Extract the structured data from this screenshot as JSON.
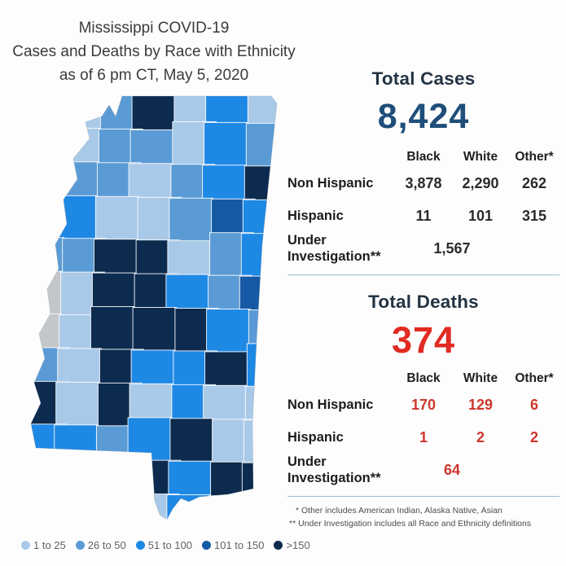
{
  "title": {
    "line1": "Mississippi COVID-19",
    "line2": "Cases and Deaths by Race with Ethnicity",
    "line3": "as of 6 pm CT, May 5, 2020"
  },
  "cases": {
    "heading": "Total Cases",
    "total": "8,424",
    "columns": [
      "Black",
      "White",
      "Other*"
    ],
    "rows": [
      {
        "label": "Non Hispanic",
        "values": [
          "3,878",
          "2,290",
          "262"
        ]
      },
      {
        "label": "Hispanic",
        "values": [
          "11",
          "101",
          "315"
        ]
      },
      {
        "label_line1": "Under",
        "label_line2": "Investigation**",
        "value": "1,567"
      }
    ]
  },
  "deaths": {
    "heading": "Total Deaths",
    "total": "374",
    "columns": [
      "Black",
      "White",
      "Other*"
    ],
    "rows": [
      {
        "label": "Non Hispanic",
        "values": [
          "170",
          "129",
          "6"
        ]
      },
      {
        "label": "Hispanic",
        "values": [
          "1",
          "2",
          "2"
        ]
      },
      {
        "label_line1": "Under",
        "label_line2": "Investigation**",
        "value": "64"
      }
    ]
  },
  "footnotes": [
    "* Other includes American Indian, Alaska Native, Asian",
    "** Under Investigation includes all Race and Ethnicity definitions"
  ],
  "legend": {
    "items": [
      {
        "label": "1 to 25",
        "color": "#a9c9e9"
      },
      {
        "label": "26 to 50",
        "color": "#5b9bd5"
      },
      {
        "label": "51 to 100",
        "color": "#1e88e5"
      },
      {
        "label": "101 to 150",
        "color": "#1659a4"
      },
      {
        "label": ">150",
        "color": "#0d2b4e"
      }
    ]
  },
  "map": {
    "no_data_color": "#c4c7ca",
    "grid": [
      [
        0,
        0,
        1,
        4,
        0,
        2,
        0
      ],
      [
        0,
        0,
        1,
        1,
        0,
        2,
        1
      ],
      [
        1,
        1,
        1,
        0,
        1,
        2,
        4
      ],
      [
        2,
        2,
        0,
        0,
        1,
        3,
        2
      ],
      [
        1,
        1,
        4,
        4,
        0,
        1,
        2
      ],
      [
        5,
        0,
        4,
        4,
        2,
        1,
        3
      ],
      [
        5,
        0,
        4,
        4,
        4,
        2,
        1
      ],
      [
        1,
        0,
        4,
        2,
        2,
        4,
        2
      ],
      [
        4,
        0,
        4,
        0,
        2,
        0,
        0
      ],
      [
        2,
        2,
        1,
        2,
        4,
        0,
        0
      ],
      [
        0,
        0,
        0,
        4,
        2,
        4,
        4
      ],
      [
        0,
        0,
        0,
        0,
        2,
        4,
        4
      ]
    ]
  },
  "colors": {
    "cases_accent": "#1f4e79",
    "deaths_accent": "#e12b22",
    "heading": "#233343",
    "divider": "#9dbdd6"
  },
  "chart_data": [
    {
      "type": "table",
      "title": "Total Cases",
      "total": 8424,
      "columns": [
        "Black",
        "White",
        "Other*"
      ],
      "rows": [
        {
          "label": "Non Hispanic",
          "values": [
            3878,
            2290,
            262
          ]
        },
        {
          "label": "Hispanic",
          "values": [
            11,
            101,
            315
          ]
        },
        {
          "label": "Under Investigation**",
          "values": [
            1567
          ]
        }
      ]
    },
    {
      "type": "table",
      "title": "Total Deaths",
      "total": 374,
      "columns": [
        "Black",
        "White",
        "Other*"
      ],
      "rows": [
        {
          "label": "Non Hispanic",
          "values": [
            170,
            129,
            6
          ]
        },
        {
          "label": "Hispanic",
          "values": [
            1,
            2,
            2
          ]
        },
        {
          "label": "Under Investigation**",
          "values": [
            64
          ]
        }
      ]
    },
    {
      "type": "heatmap",
      "subtype": "choropleth",
      "title": "Mississippi county-level COVID-19 cases",
      "legend_bins": [
        "1 to 25",
        "26 to 50",
        "51 to 100",
        "101 to 150",
        ">150"
      ],
      "legend_colors": [
        "#a9c9e9",
        "#5b9bd5",
        "#1e88e5",
        "#1659a4",
        "#0d2b4e"
      ],
      "note": "Counties shaded by case-count bin; individual county values are not labeled in the image; one county shown in grey (no data)."
    }
  ]
}
